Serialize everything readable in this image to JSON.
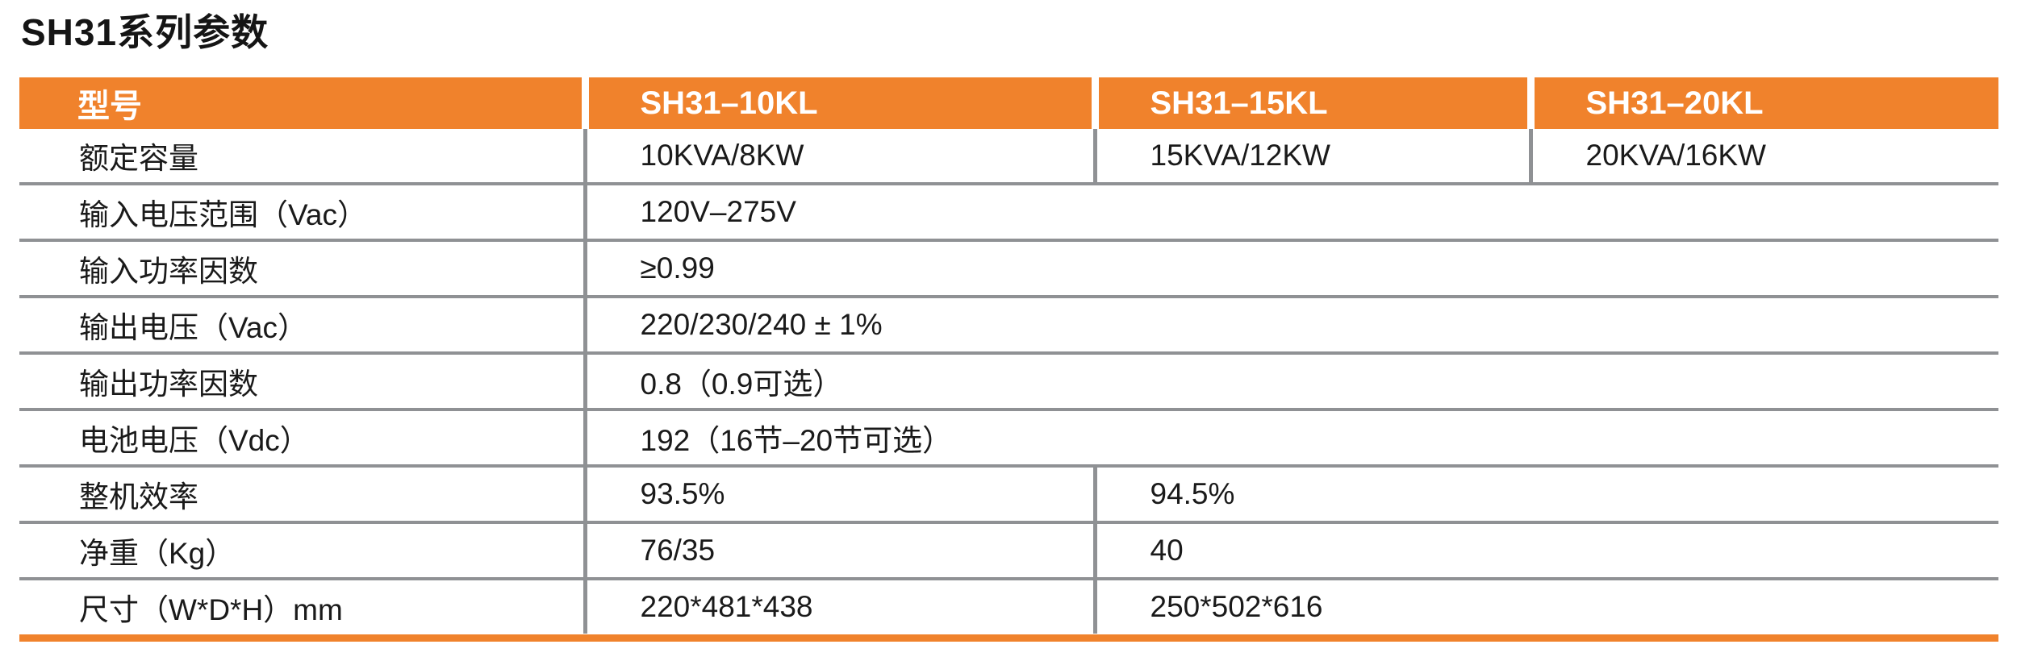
{
  "page_title": "SH31系列参数",
  "theme": {
    "accent_orange": "#F0822C",
    "line_gray": "#8F9194",
    "header_text_color": "#FFFFFF",
    "body_text_color": "#1A1A1A"
  },
  "table": {
    "columns": [
      "型号",
      "SH31–10KL",
      "SH31–15KL",
      "SH31–20KL"
    ],
    "rows": [
      {
        "label": "额定容量",
        "cells": [
          {
            "text": "10KVA/8KW"
          },
          {
            "text": "15KVA/12KW"
          },
          {
            "text": "20KVA/16KW"
          }
        ]
      },
      {
        "label": "输入电压范围（Vac）",
        "cells": [
          {
            "text": "120V–275V"
          }
        ]
      },
      {
        "label": "输入功率因数",
        "cells": [
          {
            "text": "≥0.99"
          }
        ]
      },
      {
        "label": "输出电压（Vac）",
        "cells": [
          {
            "text": "220/230/240 ± 1%"
          }
        ]
      },
      {
        "label": "输出功率因数",
        "cells": [
          {
            "text": "0.8（0.9可选）"
          }
        ]
      },
      {
        "label": "电池电压（Vdc）",
        "cells": [
          {
            "text": "192（16节–20节可选）"
          }
        ]
      },
      {
        "label": "整机效率",
        "cells": [
          {
            "text": "93.5%"
          },
          {
            "text": "94.5%"
          }
        ]
      },
      {
        "label": "净重（Kg）",
        "cells": [
          {
            "text": "76/35"
          },
          {
            "text": "40"
          }
        ]
      },
      {
        "label": "尺寸（W*D*H）mm",
        "cells": [
          {
            "text": "220*481*438"
          },
          {
            "text": "250*502*616"
          }
        ]
      }
    ]
  }
}
